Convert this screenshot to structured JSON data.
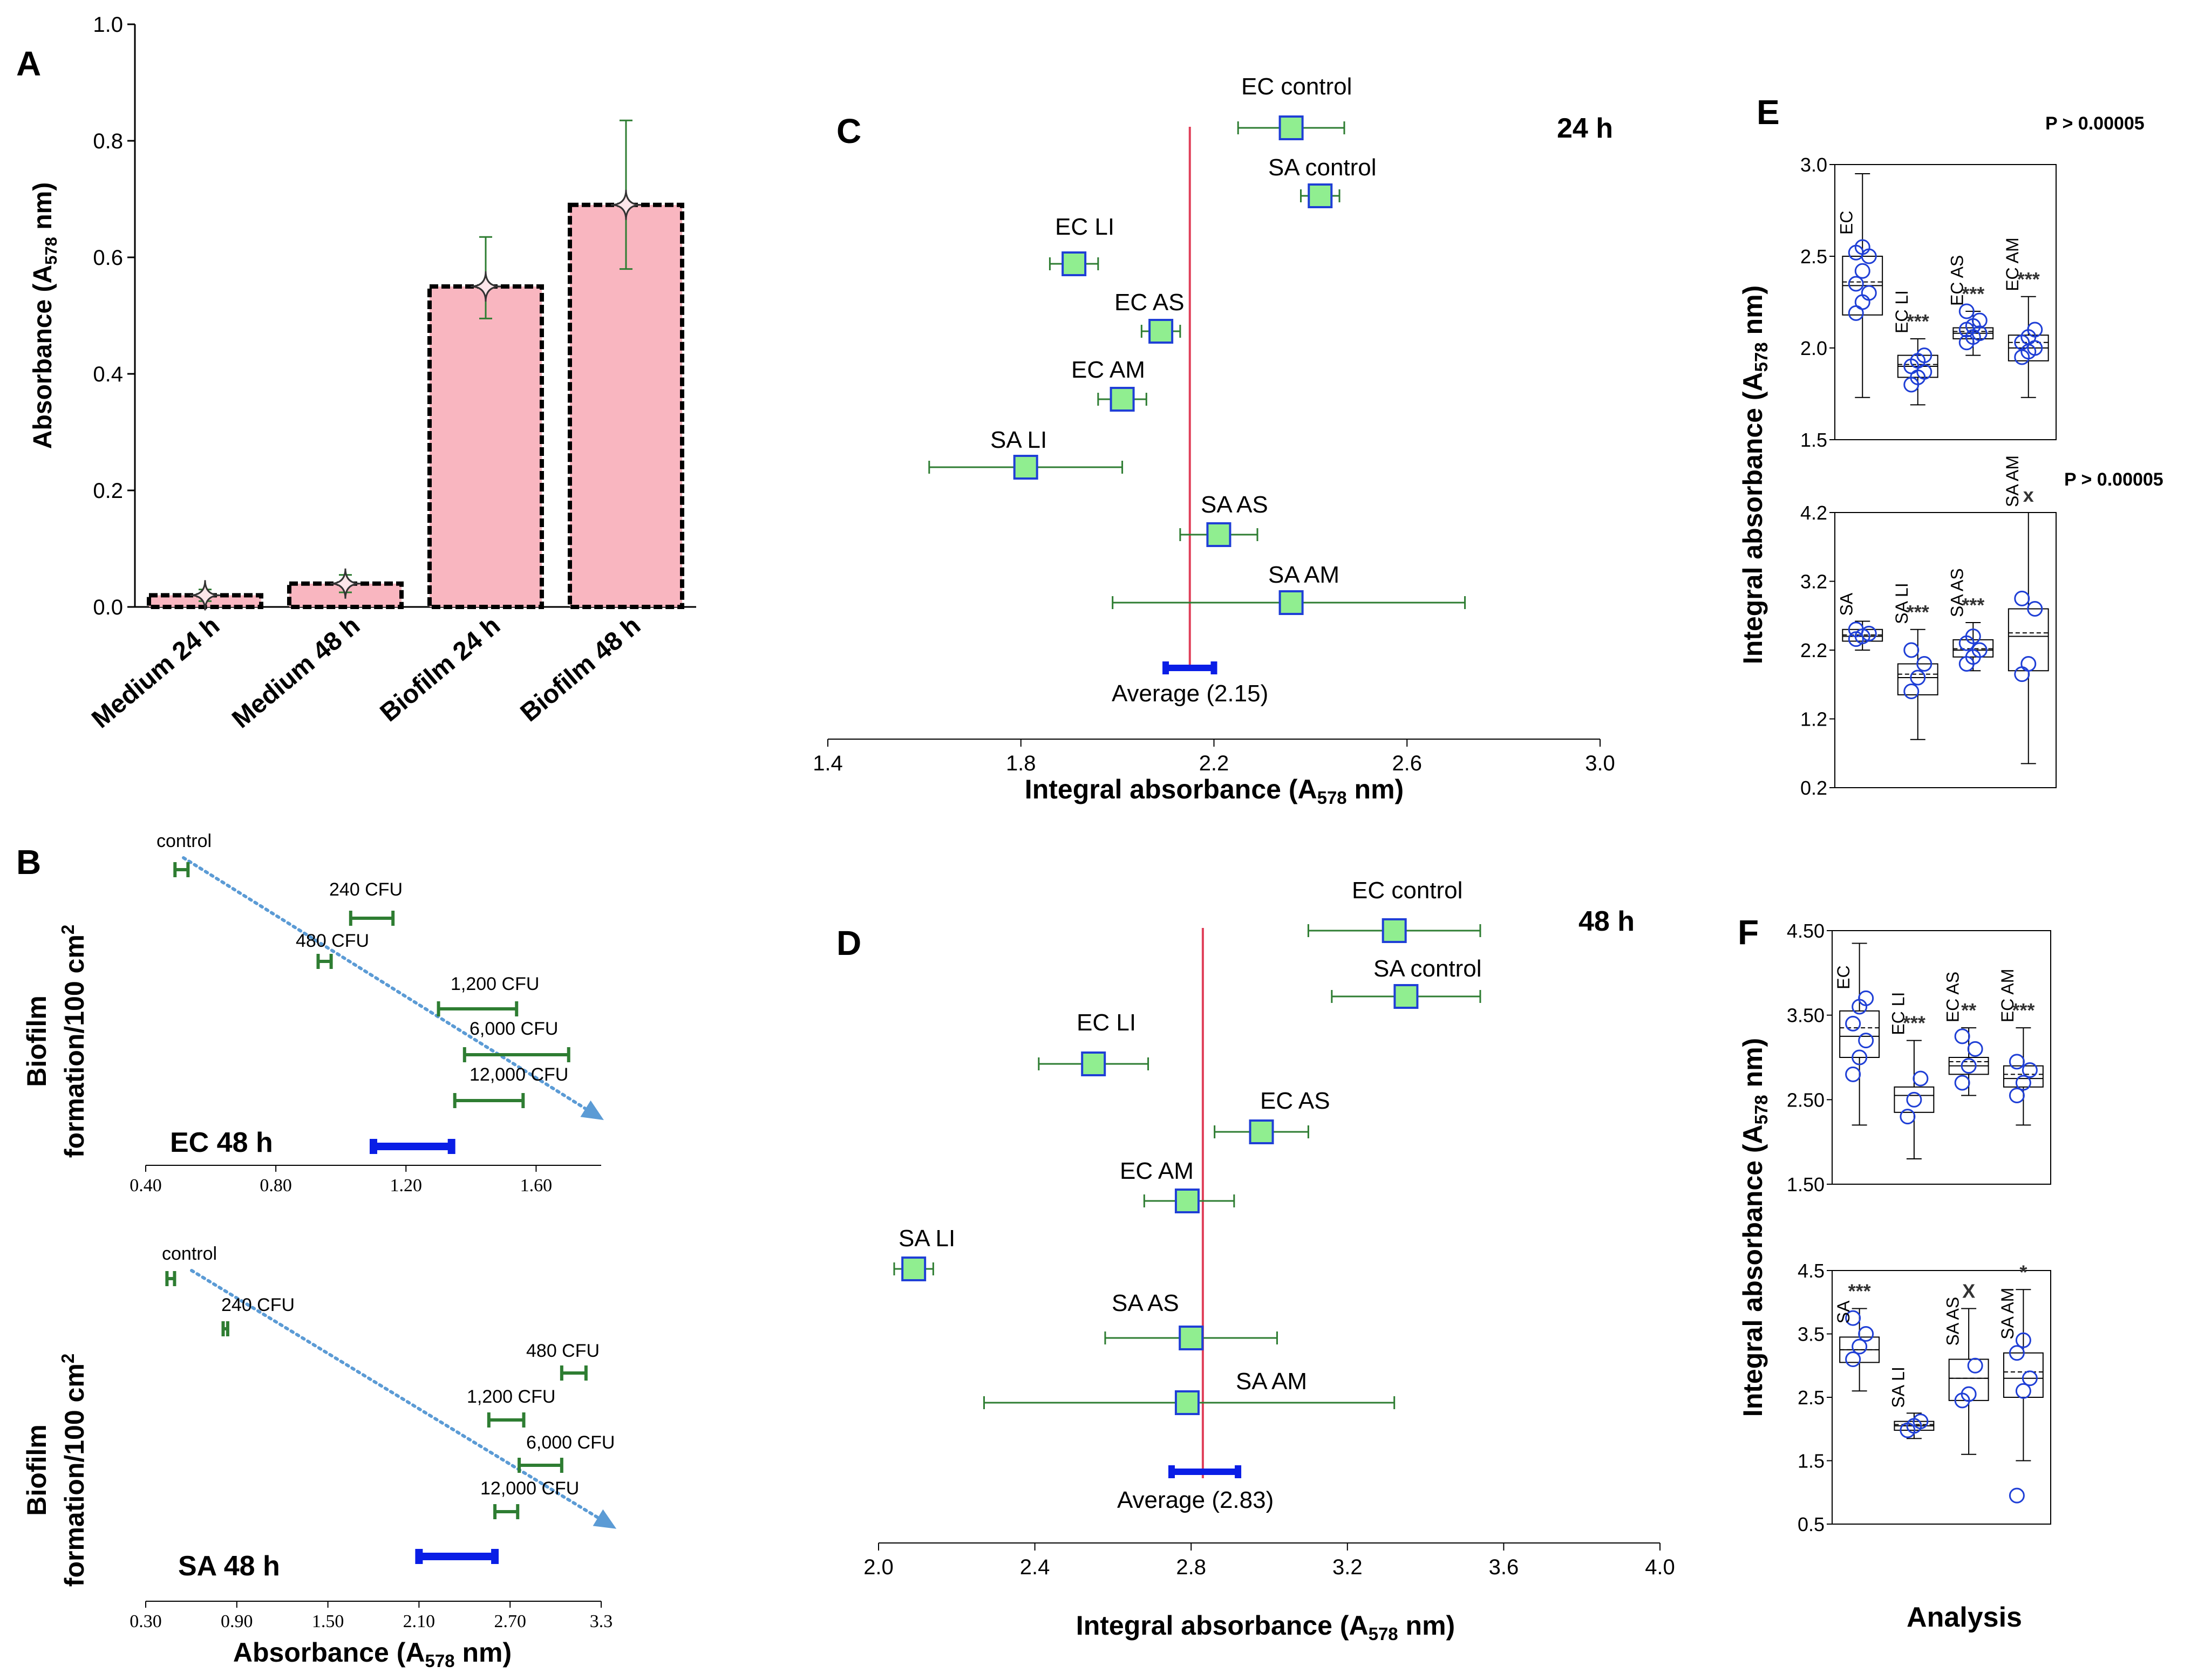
{
  "colors": {
    "bar_fill": "#f9b6c0",
    "bar_edge": "#000000",
    "errbar": "#2e7d32",
    "marker_fill": "#90ee90",
    "marker_edge": "#1f3fd6",
    "avg_line": "#e0405a",
    "avg_bar": "#0a1ee6",
    "trend": "#5b9bd5",
    "circle": "#1f3fd6"
  },
  "chart_data": [
    {
      "panel": "A",
      "type": "bar",
      "categories": [
        "Medium 24 h",
        "Medium 48 h",
        "Biofilm 24 h",
        "Biofilm 48 h"
      ],
      "values": [
        0.02,
        0.04,
        0.55,
        0.69
      ],
      "err_low": [
        0.01,
        0.025,
        0.495,
        0.58
      ],
      "err_high": [
        0.03,
        0.055,
        0.635,
        0.835
      ],
      "ylabel_main": "Absorbance (A",
      "ylabel_sub": "578",
      "ylabel_tail": " nm)",
      "ylim": [
        0.0,
        1.0
      ],
      "yticks": [
        "0.0",
        "0.2",
        "0.4",
        "0.6",
        "0.8",
        "1.0"
      ]
    },
    {
      "panel": "B",
      "title": "EC 48 h",
      "type": "interval",
      "ylabel_line1": "Biofilm",
      "ylabel_line2": "formation/100 cm",
      "ylabel_sup": "2",
      "xlim": [
        0.4,
        1.8
      ],
      "xticks": [
        "0.40",
        "0.80",
        "1.20",
        "1.60"
      ],
      "items": [
        {
          "label": "control",
          "low": 0.49,
          "high": 0.53
        },
        {
          "label": "240 CFU",
          "low": 1.03,
          "high": 1.16
        },
        {
          "label": "480 CFU",
          "low": 0.93,
          "high": 0.97
        },
        {
          "label": "1,200 CFU",
          "low": 1.3,
          "high": 1.54
        },
        {
          "label": "6,000 CFU",
          "low": 1.38,
          "high": 1.7
        },
        {
          "label": "12,000 CFU",
          "low": 1.35,
          "high": 1.56
        }
      ],
      "average": {
        "low": 1.1,
        "high": 1.34
      }
    },
    {
      "panel": "B2",
      "title": "SA 48 h",
      "type": "interval",
      "ylabel_line1": "Biofilm",
      "ylabel_line2": "formation/100 cm",
      "ylabel_sup": "2",
      "xlabel_main": "Absorbance (A",
      "xlabel_sub": "578",
      "xlabel_tail": " nm)",
      "xlim": [
        0.3,
        3.3
      ],
      "xticks": [
        "0.30",
        "0.90",
        "1.50",
        "2.10",
        "2.70",
        "3.3"
      ],
      "items": [
        {
          "label": "control",
          "low": 0.44,
          "high": 0.49
        },
        {
          "label": "240 CFU",
          "low": 0.81,
          "high": 0.84
        },
        {
          "label": "480 CFU",
          "low": 3.04,
          "high": 3.2
        },
        {
          "label": "1,200 CFU",
          "low": 2.56,
          "high": 2.79
        },
        {
          "label": "6,000 CFU",
          "low": 2.76,
          "high": 3.04
        },
        {
          "label": "12,000 CFU",
          "low": 2.6,
          "high": 2.75
        }
      ],
      "average": {
        "low": 2.1,
        "high": 2.6
      }
    },
    {
      "panel": "C",
      "title": "24 h",
      "type": "forest",
      "xlabel_main": "Integral absorbance (A",
      "xlabel_sub": "578",
      "xlabel_tail": " nm)",
      "xlim": [
        1.4,
        3.0
      ],
      "xticks": [
        "1.4",
        "1.8",
        "2.2",
        "2.6",
        "3.0"
      ],
      "items": [
        {
          "label": "EC control",
          "x": 2.36,
          "low": 2.25,
          "high": 2.47
        },
        {
          "label": "SA control",
          "x": 2.42,
          "low": 2.38,
          "high": 2.46
        },
        {
          "label": "EC LI",
          "x": 1.91,
          "low": 1.86,
          "high": 1.96
        },
        {
          "label": "EC AS",
          "x": 2.09,
          "low": 2.05,
          "high": 2.13
        },
        {
          "label": "EC AM",
          "x": 2.01,
          "low": 1.96,
          "high": 2.06
        },
        {
          "label": "SA LI",
          "x": 1.81,
          "low": 1.61,
          "high": 2.01
        },
        {
          "label": "SA AS",
          "x": 2.21,
          "low": 2.13,
          "high": 2.29
        },
        {
          "label": "SA AM",
          "x": 2.36,
          "low": 1.99,
          "high": 2.72
        }
      ],
      "average": {
        "value": 2.15,
        "low": 2.1,
        "high": 2.2,
        "label": "Average (2.15)"
      }
    },
    {
      "panel": "D",
      "title": "48 h",
      "type": "forest",
      "xlabel_main": "Integral absorbance (A",
      "xlabel_sub": "578",
      "xlabel_tail": " nm)",
      "xlim": [
        2.0,
        4.0
      ],
      "xticks": [
        "2.0",
        "2.4",
        "2.8",
        "3.2",
        "3.6",
        "4.0"
      ],
      "items": [
        {
          "label": "EC control",
          "x": 3.32,
          "low": 3.1,
          "high": 3.54
        },
        {
          "label": "SA control",
          "x": 3.35,
          "low": 3.16,
          "high": 3.54
        },
        {
          "label": "EC LI",
          "x": 2.55,
          "low": 2.41,
          "high": 2.69
        },
        {
          "label": "EC AS",
          "x": 2.98,
          "low": 2.86,
          "high": 3.1
        },
        {
          "label": "EC AM",
          "x": 2.79,
          "low": 2.68,
          "high": 2.91
        },
        {
          "label": "SA LI",
          "x": 2.09,
          "low": 2.04,
          "high": 2.14
        },
        {
          "label": "SA AS",
          "x": 2.8,
          "low": 2.58,
          "high": 3.02
        },
        {
          "label": "SA AM",
          "x": 2.79,
          "low": 2.27,
          "high": 3.32
        }
      ],
      "average": {
        "value": 2.83,
        "low": 2.75,
        "high": 2.92,
        "label": "Average (2.83)"
      }
    },
    {
      "panel": "E",
      "type": "box",
      "ylabel_main": "Integral absorbance (A",
      "ylabel_sub": "578",
      "ylabel_tail": " nm)",
      "subplots": [
        {
          "pvalue": "P > 0.00005",
          "ylim": [
            1.5,
            3.0
          ],
          "yticks": [
            "1.5",
            "2.0",
            "2.5",
            "3.0"
          ],
          "boxes": [
            {
              "label": "EC",
              "sig": "",
              "min": 1.73,
              "q1": 2.18,
              "median": 2.34,
              "mean": 2.36,
              "q3": 2.5,
              "max": 2.95,
              "points": [
                2.19,
                2.25,
                2.3,
                2.35,
                2.42,
                2.5,
                2.52,
                2.55
              ]
            },
            {
              "label": "EC LI",
              "sig": "***",
              "min": 1.69,
              "q1": 1.84,
              "median": 1.9,
              "mean": 1.91,
              "q3": 1.96,
              "max": 2.05,
              "points": [
                1.8,
                1.84,
                1.87,
                1.9,
                1.93,
                1.96
              ]
            },
            {
              "label": "EC AS",
              "sig": "***",
              "min": 1.96,
              "q1": 2.05,
              "median": 2.08,
              "mean": 2.09,
              "q3": 2.11,
              "max": 2.2,
              "points": [
                2.03,
                2.06,
                2.08,
                2.1,
                2.12,
                2.15,
                2.2
              ]
            },
            {
              "label": "EC AM",
              "sig": "***",
              "min": 1.73,
              "q1": 1.93,
              "median": 2.0,
              "mean": 2.03,
              "q3": 2.07,
              "max": 2.28,
              "points": [
                1.95,
                1.98,
                2.0,
                2.03,
                2.06,
                2.1
              ]
            }
          ]
        },
        {
          "pvalue": "P > 0.00005",
          "ylim": [
            0.2,
            4.2
          ],
          "yticks": [
            "0.2",
            "1.2",
            "2.2",
            "3.2",
            "4.2"
          ],
          "boxes": [
            {
              "label": "SA",
              "sig": "",
              "min": 2.2,
              "q1": 2.33,
              "median": 2.4,
              "mean": 2.42,
              "q3": 2.5,
              "max": 2.62,
              "points": [
                2.36,
                2.4,
                2.44,
                2.5
              ]
            },
            {
              "label": "SA LI",
              "sig": "***",
              "min": 0.9,
              "q1": 1.55,
              "median": 1.8,
              "mean": 1.85,
              "q3": 2.0,
              "max": 2.5,
              "points": [
                1.6,
                1.8,
                2.0,
                2.2
              ]
            },
            {
              "label": "SA AS",
              "sig": "***",
              "min": 1.9,
              "q1": 2.1,
              "median": 2.2,
              "mean": 2.22,
              "q3": 2.35,
              "max": 2.6,
              "points": [
                2.0,
                2.1,
                2.2,
                2.3,
                2.4
              ]
            },
            {
              "label": "SA AM",
              "sig": "x",
              "min": 0.55,
              "q1": 1.9,
              "median": 2.4,
              "mean": 2.45,
              "q3": 2.8,
              "max": 4.2,
              "points": [
                1.85,
                2.0,
                2.8,
                2.95
              ]
            }
          ]
        }
      ]
    },
    {
      "panel": "F",
      "type": "box",
      "ylabel_main": "Integral absorbance (A",
      "ylabel_sub": "578",
      "ylabel_tail": " nm)",
      "xlabel": "Analysis",
      "subplots": [
        {
          "pvalue": "",
          "ylim": [
            1.5,
            4.5
          ],
          "yticks": [
            "1.50",
            "2.50",
            "3.50",
            "4.50"
          ],
          "boxes": [
            {
              "label": "EC",
              "sig": "",
              "min": 2.2,
              "q1": 3.0,
              "median": 3.25,
              "mean": 3.35,
              "q3": 3.55,
              "max": 4.35,
              "points": [
                2.8,
                3.0,
                3.2,
                3.4,
                3.6,
                3.7
              ]
            },
            {
              "label": "EC LI",
              "sig": "***",
              "min": 1.8,
              "q1": 2.35,
              "median": 2.55,
              "mean": 2.55,
              "q3": 2.65,
              "max": 3.2,
              "points": [
                2.3,
                2.5,
                2.75
              ]
            },
            {
              "label": "EC AS",
              "sig": "**",
              "min": 2.55,
              "q1": 2.8,
              "median": 2.9,
              "mean": 2.95,
              "q3": 3.0,
              "max": 3.35,
              "points": [
                2.7,
                2.9,
                3.1,
                3.25
              ]
            },
            {
              "label": "EC AM",
              "sig": "***",
              "min": 2.2,
              "q1": 2.65,
              "median": 2.75,
              "mean": 2.8,
              "q3": 2.9,
              "max": 3.35,
              "points": [
                2.55,
                2.7,
                2.85,
                2.95
              ]
            }
          ]
        },
        {
          "pvalue": "",
          "ylim": [
            0.5,
            4.5
          ],
          "yticks": [
            "0.5",
            "1.5",
            "2.5",
            "3.5",
            "4.5"
          ],
          "boxes": [
            {
              "label": "SA",
              "sig": "***",
              "min": 2.6,
              "q1": 3.05,
              "median": 3.25,
              "mean": 3.25,
              "q3": 3.45,
              "max": 3.9,
              "points": [
                3.1,
                3.3,
                3.5,
                3.75
              ]
            },
            {
              "label": "SA LI",
              "sig": "",
              "min": 1.85,
              "q1": 1.98,
              "median": 2.05,
              "mean": 2.07,
              "q3": 2.12,
              "max": 2.25,
              "points": [
                1.98,
                2.05,
                2.12
              ]
            },
            {
              "label": "SA AS",
              "sig": "X",
              "min": 1.6,
              "q1": 2.45,
              "median": 2.8,
              "mean": 2.8,
              "q3": 3.1,
              "max": 3.9,
              "points": [
                2.45,
                2.55,
                3.0
              ]
            },
            {
              "label": "SA AM",
              "sig": "*",
              "min": 1.5,
              "q1": 2.5,
              "median": 2.8,
              "mean": 2.9,
              "q3": 3.2,
              "max": 4.2,
              "points": [
                0.95,
                2.6,
                2.8,
                3.2,
                3.4
              ]
            }
          ]
        }
      ]
    }
  ],
  "panel_letters": [
    "A",
    "B",
    "C",
    "D",
    "E",
    "F"
  ]
}
